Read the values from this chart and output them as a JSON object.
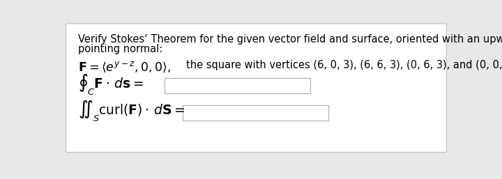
{
  "bg_color": "#e8e8e8",
  "card_color": "#ffffff",
  "card_border_color": "#c8c8c8",
  "text_color": "#000000",
  "title_line1": "Verify Stokes’ Theorem for the given vector field and surface, oriented with an upward-",
  "title_line2": "pointing normal:",
  "font_size_title": 10.5,
  "font_size_field": 12.5,
  "font_size_math": 13.5,
  "font_size_curl": 11.5
}
